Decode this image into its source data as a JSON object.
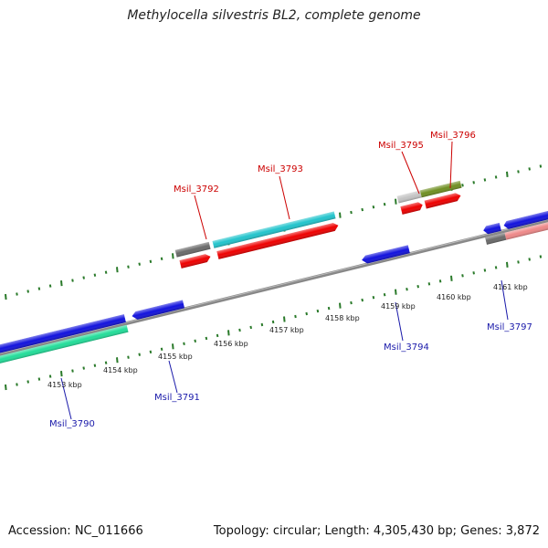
{
  "title": "Methylocella silvestris BL2, complete genome",
  "footer": {
    "accession": "Accession: NC_011666",
    "summary": "Topology: circular; Length: 4,305,430 bp; Genes: 3,872"
  },
  "ruler": {
    "labels": [
      "4153 kbp",
      "4154 kbp",
      "4155 kbp",
      "4156 kbp",
      "4157 kbp",
      "4158 kbp",
      "4159 kbp",
      "4160 kbp",
      "4161 kbp"
    ]
  },
  "genes": {
    "msil_3790": "Msil_3790",
    "msil_3791": "Msil_3791",
    "msil_3792": "Msil_3792",
    "msil_3793": "Msil_3793",
    "msil_3794": "Msil_3794",
    "msil_3795": "Msil_3795",
    "msil_3796": "Msil_3796",
    "msil_3797": "Msil_3797"
  },
  "colors": {
    "backbone": "#808080",
    "forward_label": "#cc0000",
    "reverse_label": "#1a1aaa",
    "tick": "#2a7a2a",
    "red": "#ee0000",
    "blue": "#1212dd",
    "cyan": "#22c4cc",
    "teal_green": "#22dd99",
    "gray": "#6a6a6a",
    "light_gray": "#c4c4c4",
    "olive": "#6f8f22",
    "pink": "#ee8888"
  }
}
